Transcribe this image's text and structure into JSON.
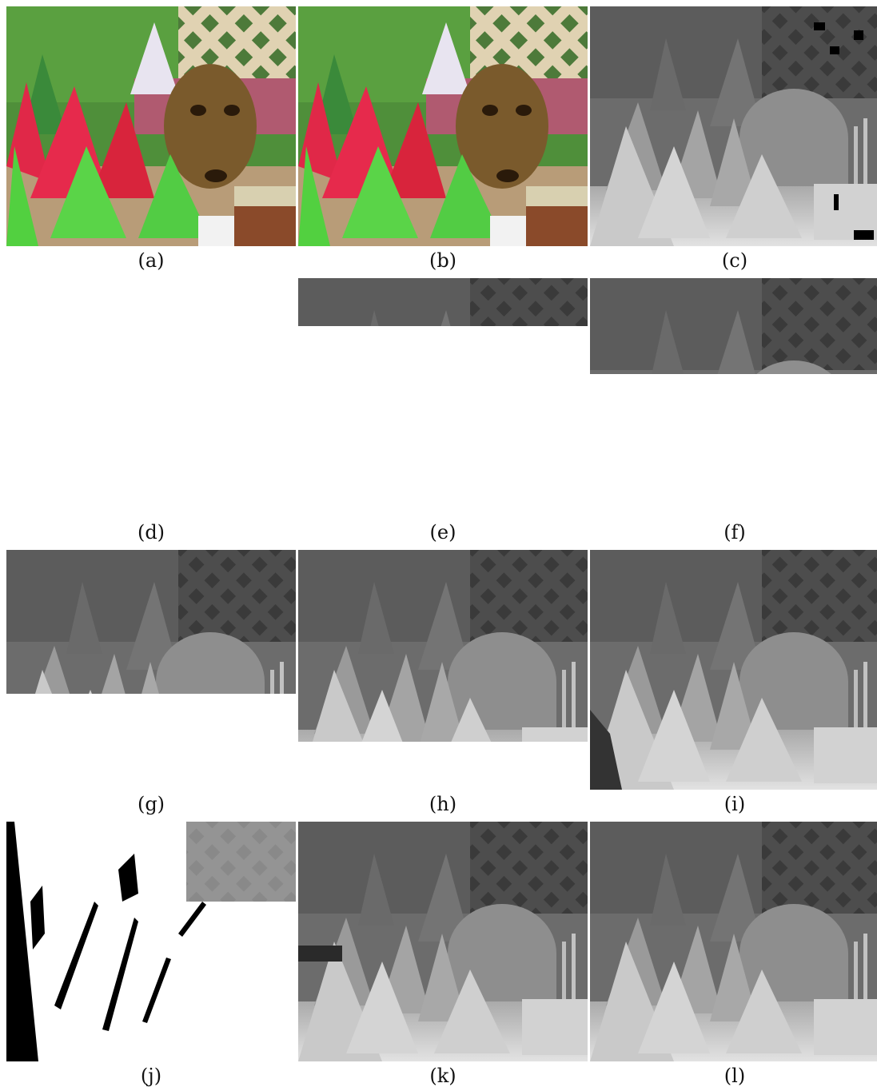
{
  "panels": [
    {
      "caption": "(a)"
    },
    {
      "caption": "(b)"
    },
    {
      "caption": "(c)"
    },
    {
      "caption": "(d)"
    },
    {
      "caption": "(e)"
    },
    {
      "caption": "(f)"
    },
    {
      "caption": "(g)"
    },
    {
      "caption": "(h)"
    },
    {
      "caption": "(i)"
    },
    {
      "caption": "(j)"
    },
    {
      "caption": "(k)"
    },
    {
      "caption": "(l)"
    }
  ]
}
